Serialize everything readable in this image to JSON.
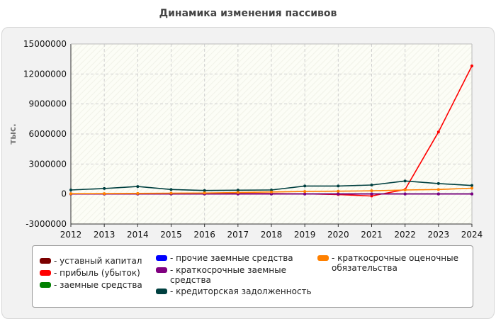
{
  "chart_data": {
    "type": "line",
    "title": "Динамика изменения пассивов",
    "xlabel": "",
    "ylabel": "тыс.",
    "x": [
      "2012",
      "2013",
      "2014",
      "2015",
      "2016",
      "2017",
      "2018",
      "2019",
      "2020",
      "2021",
      "2022",
      "2023",
      "2024"
    ],
    "ylim": [
      -3000000,
      15000000
    ],
    "yticks": [
      15000000,
      12000000,
      9000000,
      6000000,
      3000000,
      0,
      -3000000
    ],
    "ytick_labels": [
      "15000000",
      "12000000",
      "9000000",
      "6000000",
      "3000000",
      "0",
      "-3000000"
    ],
    "grid": true,
    "legend_position": "bottom",
    "series": [
      {
        "name": "уставный капитал",
        "color": "#7b0000",
        "values": [
          10000,
          10000,
          10000,
          10000,
          10000,
          10000,
          10000,
          10000,
          10000,
          10000,
          10000,
          10000,
          10000
        ]
      },
      {
        "name": "прибыль (убыток)",
        "color": "#ff0000",
        "values": [
          0,
          0,
          0,
          20000,
          30000,
          40000,
          50000,
          10000,
          -50000,
          -200000,
          450000,
          6200000,
          12800000
        ]
      },
      {
        "name": "заемные средства",
        "color": "#008000",
        "values": [
          0,
          0,
          0,
          0,
          0,
          0,
          0,
          0,
          0,
          0,
          0,
          0,
          0
        ]
      },
      {
        "name": "прочие заемные средства",
        "color": "#0000ff",
        "values": [
          0,
          0,
          0,
          0,
          0,
          0,
          0,
          0,
          0,
          0,
          0,
          0,
          0
        ]
      },
      {
        "name": "краткосрочные заемные средства",
        "color": "#800080",
        "values": [
          0,
          0,
          0,
          0,
          0,
          0,
          0,
          0,
          0,
          0,
          0,
          0,
          0
        ]
      },
      {
        "name": "кредиторская задолженность",
        "color": "#004040",
        "values": [
          400000,
          550000,
          750000,
          450000,
          350000,
          380000,
          400000,
          800000,
          800000,
          900000,
          1300000,
          1050000,
          850000
        ]
      },
      {
        "name": "краткосрочные оценочные обязательства",
        "color": "#ff8000",
        "values": [
          30000,
          40000,
          60000,
          80000,
          100000,
          150000,
          200000,
          250000,
          280000,
          320000,
          400000,
          450000,
          580000
        ]
      }
    ]
  }
}
